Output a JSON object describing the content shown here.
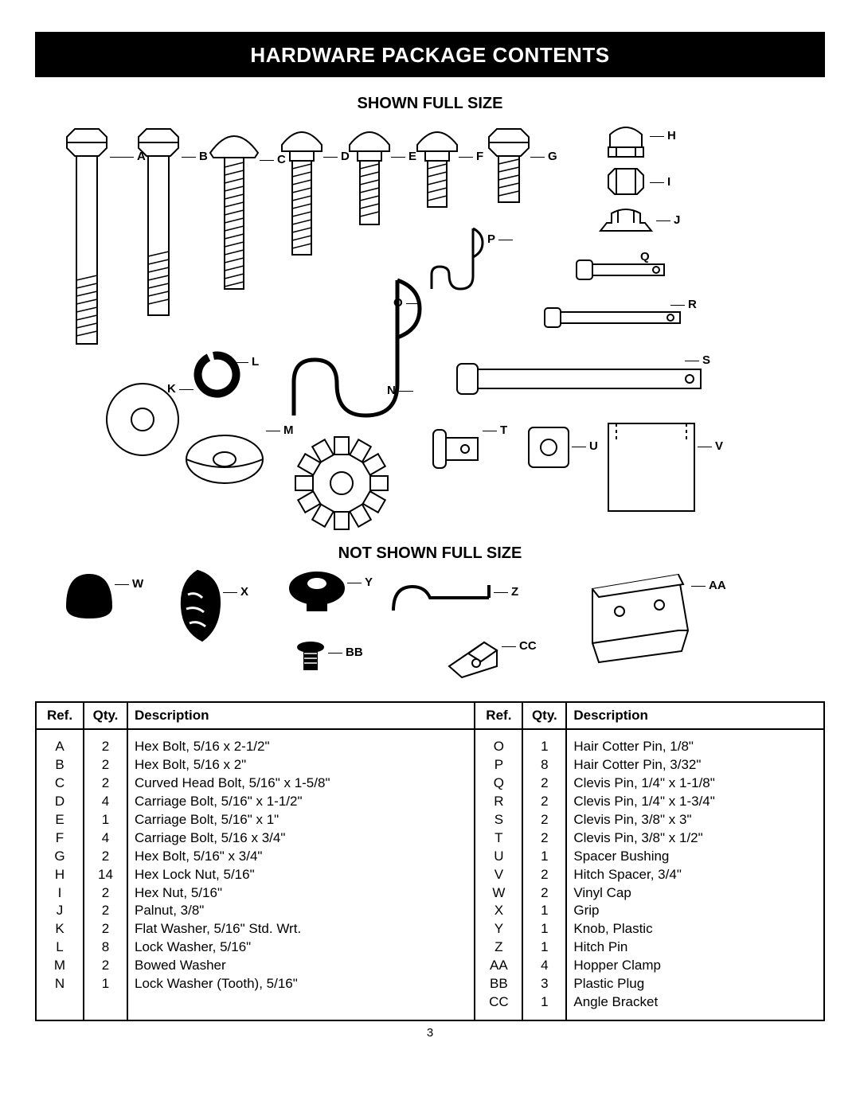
{
  "title": "Hardware Package Contents",
  "section_full": "Shown Full Size",
  "section_notfull": "Not Shown Full Size",
  "page_number": "3",
  "headers": {
    "ref": "Ref.",
    "qty": "Qty.",
    "desc": "Description"
  },
  "labels_full": [
    "A",
    "B",
    "C",
    "D",
    "E",
    "F",
    "G",
    "H",
    "I",
    "J",
    "K",
    "L",
    "M",
    "N",
    "O",
    "P",
    "Q",
    "R",
    "S",
    "T",
    "U",
    "V"
  ],
  "labels_notfull": [
    "W",
    "X",
    "Y",
    "Z",
    "AA",
    "BB",
    "CC"
  ],
  "rows_left": [
    {
      "ref": "A",
      "qty": "2",
      "desc": "Hex Bolt, 5/16 x 2-1/2\""
    },
    {
      "ref": "B",
      "qty": "2",
      "desc": "Hex Bolt, 5/16 x 2\""
    },
    {
      "ref": "C",
      "qty": "2",
      "desc": "Curved Head Bolt, 5/16\" x 1-5/8\""
    },
    {
      "ref": "D",
      "qty": "4",
      "desc": "Carriage Bolt, 5/16\" x 1-1/2\""
    },
    {
      "ref": "E",
      "qty": "1",
      "desc": "Carriage Bolt, 5/16\" x 1\""
    },
    {
      "ref": "F",
      "qty": "4",
      "desc": "Carriage Bolt, 5/16 x 3/4\""
    },
    {
      "ref": "G",
      "qty": "2",
      "desc": "Hex Bolt, 5/16\" x 3/4\""
    },
    {
      "ref": "H",
      "qty": "14",
      "desc": "Hex Lock Nut, 5/16\""
    },
    {
      "ref": "I",
      "qty": "2",
      "desc": "Hex Nut, 5/16\""
    },
    {
      "ref": "J",
      "qty": "2",
      "desc": "Palnut, 3/8\""
    },
    {
      "ref": "K",
      "qty": "2",
      "desc": "Flat Washer, 5/16\" Std. Wrt."
    },
    {
      "ref": "L",
      "qty": "8",
      "desc": "Lock Washer, 5/16\""
    },
    {
      "ref": "M",
      "qty": "2",
      "desc": "Bowed Washer"
    },
    {
      "ref": "N",
      "qty": "1",
      "desc": "Lock Washer (Tooth), 5/16\""
    }
  ],
  "rows_right": [
    {
      "ref": "O",
      "qty": "1",
      "desc": "Hair Cotter Pin, 1/8\""
    },
    {
      "ref": "P",
      "qty": "8",
      "desc": "Hair Cotter Pin, 3/32\""
    },
    {
      "ref": "Q",
      "qty": "2",
      "desc": "Clevis Pin, 1/4\" x 1-1/8\""
    },
    {
      "ref": "R",
      "qty": "2",
      "desc": "Clevis Pin, 1/4\" x 1-3/4\""
    },
    {
      "ref": "S",
      "qty": "2",
      "desc": "Clevis Pin, 3/8\" x 3\""
    },
    {
      "ref": "T",
      "qty": "2",
      "desc": "Clevis Pin, 3/8\" x 1/2\""
    },
    {
      "ref": "U",
      "qty": "1",
      "desc": "Spacer Bushing"
    },
    {
      "ref": "V",
      "qty": "2",
      "desc": "Hitch Spacer, 3/4\""
    },
    {
      "ref": "W",
      "qty": "2",
      "desc": "Vinyl Cap"
    },
    {
      "ref": "X",
      "qty": "1",
      "desc": "Grip"
    },
    {
      "ref": "Y",
      "qty": "1",
      "desc": "Knob, Plastic"
    },
    {
      "ref": "Z",
      "qty": "1",
      "desc": "Hitch Pin"
    },
    {
      "ref": "AA",
      "qty": "4",
      "desc": "Hopper Clamp"
    },
    {
      "ref": "BB",
      "qty": "3",
      "desc": "Plastic Plug"
    },
    {
      "ref": "CC",
      "qty": "1",
      "desc": "Angle Bracket"
    }
  ],
  "style": {
    "title_bg": "#000000",
    "title_fg": "#ffffff",
    "stroke": "#000000",
    "fill_light": "#ffffff",
    "fill_black": "#000000",
    "font_body": 17,
    "font_label": 15,
    "font_title": 26
  }
}
